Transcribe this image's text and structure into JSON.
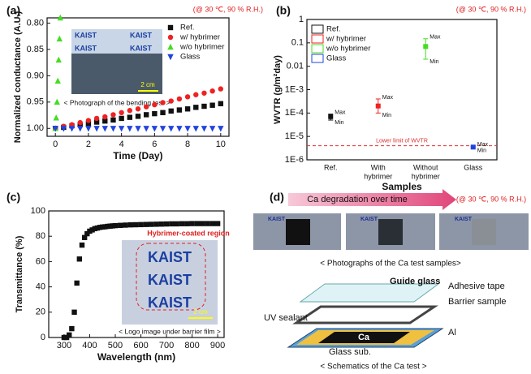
{
  "chart_data": [
    {
      "panel": "(a)",
      "type": "scatter",
      "annotation": "(@ 30 ℃, 90 % R.H.)",
      "xlabel": "Time (Day)",
      "ylabel": "Normalized conductance (A.U.)",
      "xlim": [
        -0.5,
        10.5
      ],
      "xticks": [
        0,
        2,
        4,
        6,
        8,
        10
      ],
      "ylim": [
        1.015,
        0.79
      ],
      "yticks": [
        {
          "value": 0.8,
          "label": "0.80"
        },
        0.85,
        {
          "value": 0.9,
          "label": "0.90"
        },
        0.95,
        {
          "value": 1,
          "label": "1.00"
        }
      ],
      "legend": "upper right",
      "legend_marker": "marker",
      "inset": {
        "logo": "KAIST",
        "scale": "2 cm",
        "caption": "< Photograph of the bending test >"
      },
      "series": [
        {
          "name": "Ref.",
          "color": "#111111",
          "marker": "square",
          "x": [
            0,
            0.5,
            1,
            1.5,
            2,
            2.5,
            3,
            3.5,
            4,
            4.5,
            5,
            5.5,
            6,
            6.5,
            7,
            7.5,
            8,
            8.5,
            9,
            9.5,
            10
          ],
          "values": [
            1.0,
            0.998,
            0.995,
            0.993,
            0.991,
            0.988,
            0.986,
            0.984,
            0.981,
            0.979,
            0.977,
            0.974,
            0.972,
            0.97,
            0.967,
            0.965,
            0.963,
            0.96,
            0.958,
            0.956,
            0.953
          ]
        },
        {
          "name": "w/ hybrimer",
          "color": "#ee2222",
          "marker": "circle",
          "x": [
            0,
            0.5,
            1,
            1.5,
            2,
            2.5,
            3,
            3.5,
            4,
            4.5,
            5,
            5.5,
            6,
            6.5,
            7,
            7.5,
            8,
            8.5,
            9,
            9.5,
            10
          ],
          "values": [
            1.0,
            0.996,
            0.993,
            0.989,
            0.985,
            0.981,
            0.978,
            0.974,
            0.97,
            0.966,
            0.963,
            0.959,
            0.955,
            0.951,
            0.948,
            0.944,
            0.94,
            0.936,
            0.933,
            0.929,
            0.925
          ]
        },
        {
          "name": "w/o hybrimer",
          "color": "#44dd22",
          "marker": "triangle",
          "x": [
            0,
            0.05,
            0.1,
            0.15,
            0.2,
            0.25,
            0.3
          ],
          "values": [
            1.0,
            0.98,
            0.95,
            0.91,
            0.87,
            0.83,
            0.79
          ]
        },
        {
          "name": "Glass",
          "color": "#2244dd",
          "marker": "triangle-down",
          "x": [
            0,
            0.5,
            1,
            1.5,
            2,
            2.5,
            3,
            3.5,
            4,
            4.5,
            5,
            5.5,
            6,
            6.5,
            7,
            7.5,
            8,
            8.5,
            9,
            9.5,
            10
          ],
          "values": [
            1,
            1,
            1,
            1,
            1,
            1,
            1,
            1,
            1,
            1,
            1,
            1,
            1,
            1,
            1,
            1,
            1,
            1,
            1,
            1,
            1
          ]
        }
      ]
    },
    {
      "panel": "(b)",
      "type": "dot",
      "annotation": "(@ 30 ℃, 90 % R.H.)",
      "xlabel": "Samples",
      "ylabel": "WVTR (g/m²day)",
      "categories": [
        [
          "Ref."
        ],
        [
          "With",
          "hybrimer"
        ],
        [
          "Without",
          "hybrimer"
        ],
        [
          "Glass"
        ]
      ],
      "log_y": true,
      "ylim": [
        1e-06,
        1
      ],
      "yticks": [
        {
          "value": 1e-06,
          "label": "1E-6"
        },
        {
          "value": 1e-05,
          "label": "1E-5"
        },
        {
          "value": 0.0001,
          "label": "1E-4"
        },
        {
          "value": 0.001,
          "label": "1E-3"
        },
        0.01,
        0.1,
        1
      ],
      "legend": "upper left",
      "legend_marker": "box",
      "max_label": "Max",
      "min_label": "Min",
      "hline": {
        "value": 4e-06,
        "label": "Lower limit of WVTR",
        "color": "#e03030"
      },
      "series": [
        {
          "name": "Ref.",
          "color": "#111111",
          "values": [
            7e-05,
            null,
            null,
            null
          ],
          "max": [
            9e-05,
            null,
            null,
            null
          ],
          "min": [
            5e-05,
            null,
            null,
            null
          ]
        },
        {
          "name": "w/ hybrimer",
          "color": "#ee2222",
          "values": [
            null,
            0.0002,
            null,
            null
          ],
          "max": [
            null,
            0.0004,
            null,
            null
          ],
          "min": [
            null,
            0.0001,
            null,
            null
          ]
        },
        {
          "name": "w/o hybrimer",
          "color": "#44dd22",
          "values": [
            null,
            null,
            0.07,
            null
          ],
          "max": [
            null,
            null,
            0.15,
            null
          ],
          "min": [
            null,
            null,
            0.02,
            null
          ]
        },
        {
          "name": "Glass",
          "color": "#2244dd",
          "values": [
            null,
            null,
            null,
            3.5e-06
          ],
          "max": [
            null,
            null,
            null,
            3.8e-06
          ],
          "min": [
            null,
            null,
            null,
            3.2e-06
          ]
        }
      ]
    },
    {
      "panel": "(c)",
      "type": "scatter",
      "xlabel": "Wavelength (nm)",
      "ylabel": "Transmittance (%)",
      "xlim": [
        240,
        925
      ],
      "xticks": [
        300,
        400,
        500,
        600,
        700,
        800,
        900
      ],
      "ylim": [
        0,
        100
      ],
      "yticks": [
        0,
        20,
        40,
        60,
        80,
        100
      ],
      "inset": {
        "region": "Hybrimer-coated region",
        "logo": "KAIST",
        "scale": "2 cm",
        "caption": "< Logo image under barrier film >"
      },
      "series": [
        {
          "name": "Transmittance",
          "color": "#111111",
          "marker": "square",
          "x": [
            300,
            310,
            320,
            330,
            340,
            350,
            360,
            370,
            380,
            390,
            400,
            410,
            420,
            430,
            440,
            450,
            460,
            470,
            480,
            490,
            500,
            520,
            540,
            560,
            580,
            600,
            620,
            640,
            660,
            680,
            700,
            720,
            740,
            760,
            780,
            800,
            820,
            840,
            860,
            880,
            900
          ],
          "values": [
            0,
            0,
            2,
            7,
            20,
            43,
            62,
            73,
            79,
            82,
            84,
            85,
            86,
            86.5,
            87,
            87.3,
            87.5,
            87.8,
            88,
            88.2,
            88.4,
            88.6,
            88.8,
            89,
            89.1,
            89.2,
            89.3,
            89.4,
            89.5,
            89.6,
            89.7,
            89.8,
            89.8,
            89.9,
            89.9,
            90,
            90,
            90,
            90,
            90,
            90
          ]
        }
      ]
    }
  ],
  "schematic": {
    "panel": "(d)",
    "arrow": "Ca degradation over time",
    "annotation": "(@ 30 ℃, 90 % R.H.)",
    "photo_logo": "KAIST",
    "photo_caption": "< Photographs of the Ca test samples>",
    "guide": "Guide glass",
    "tape": "Adhesive tape",
    "barrier": "Barrier sample",
    "sealant": "UV sealant",
    "ca": "Ca",
    "al": "Al",
    "substrate": "Glass sub.",
    "caption": "< Schematics of the Ca test >"
  }
}
